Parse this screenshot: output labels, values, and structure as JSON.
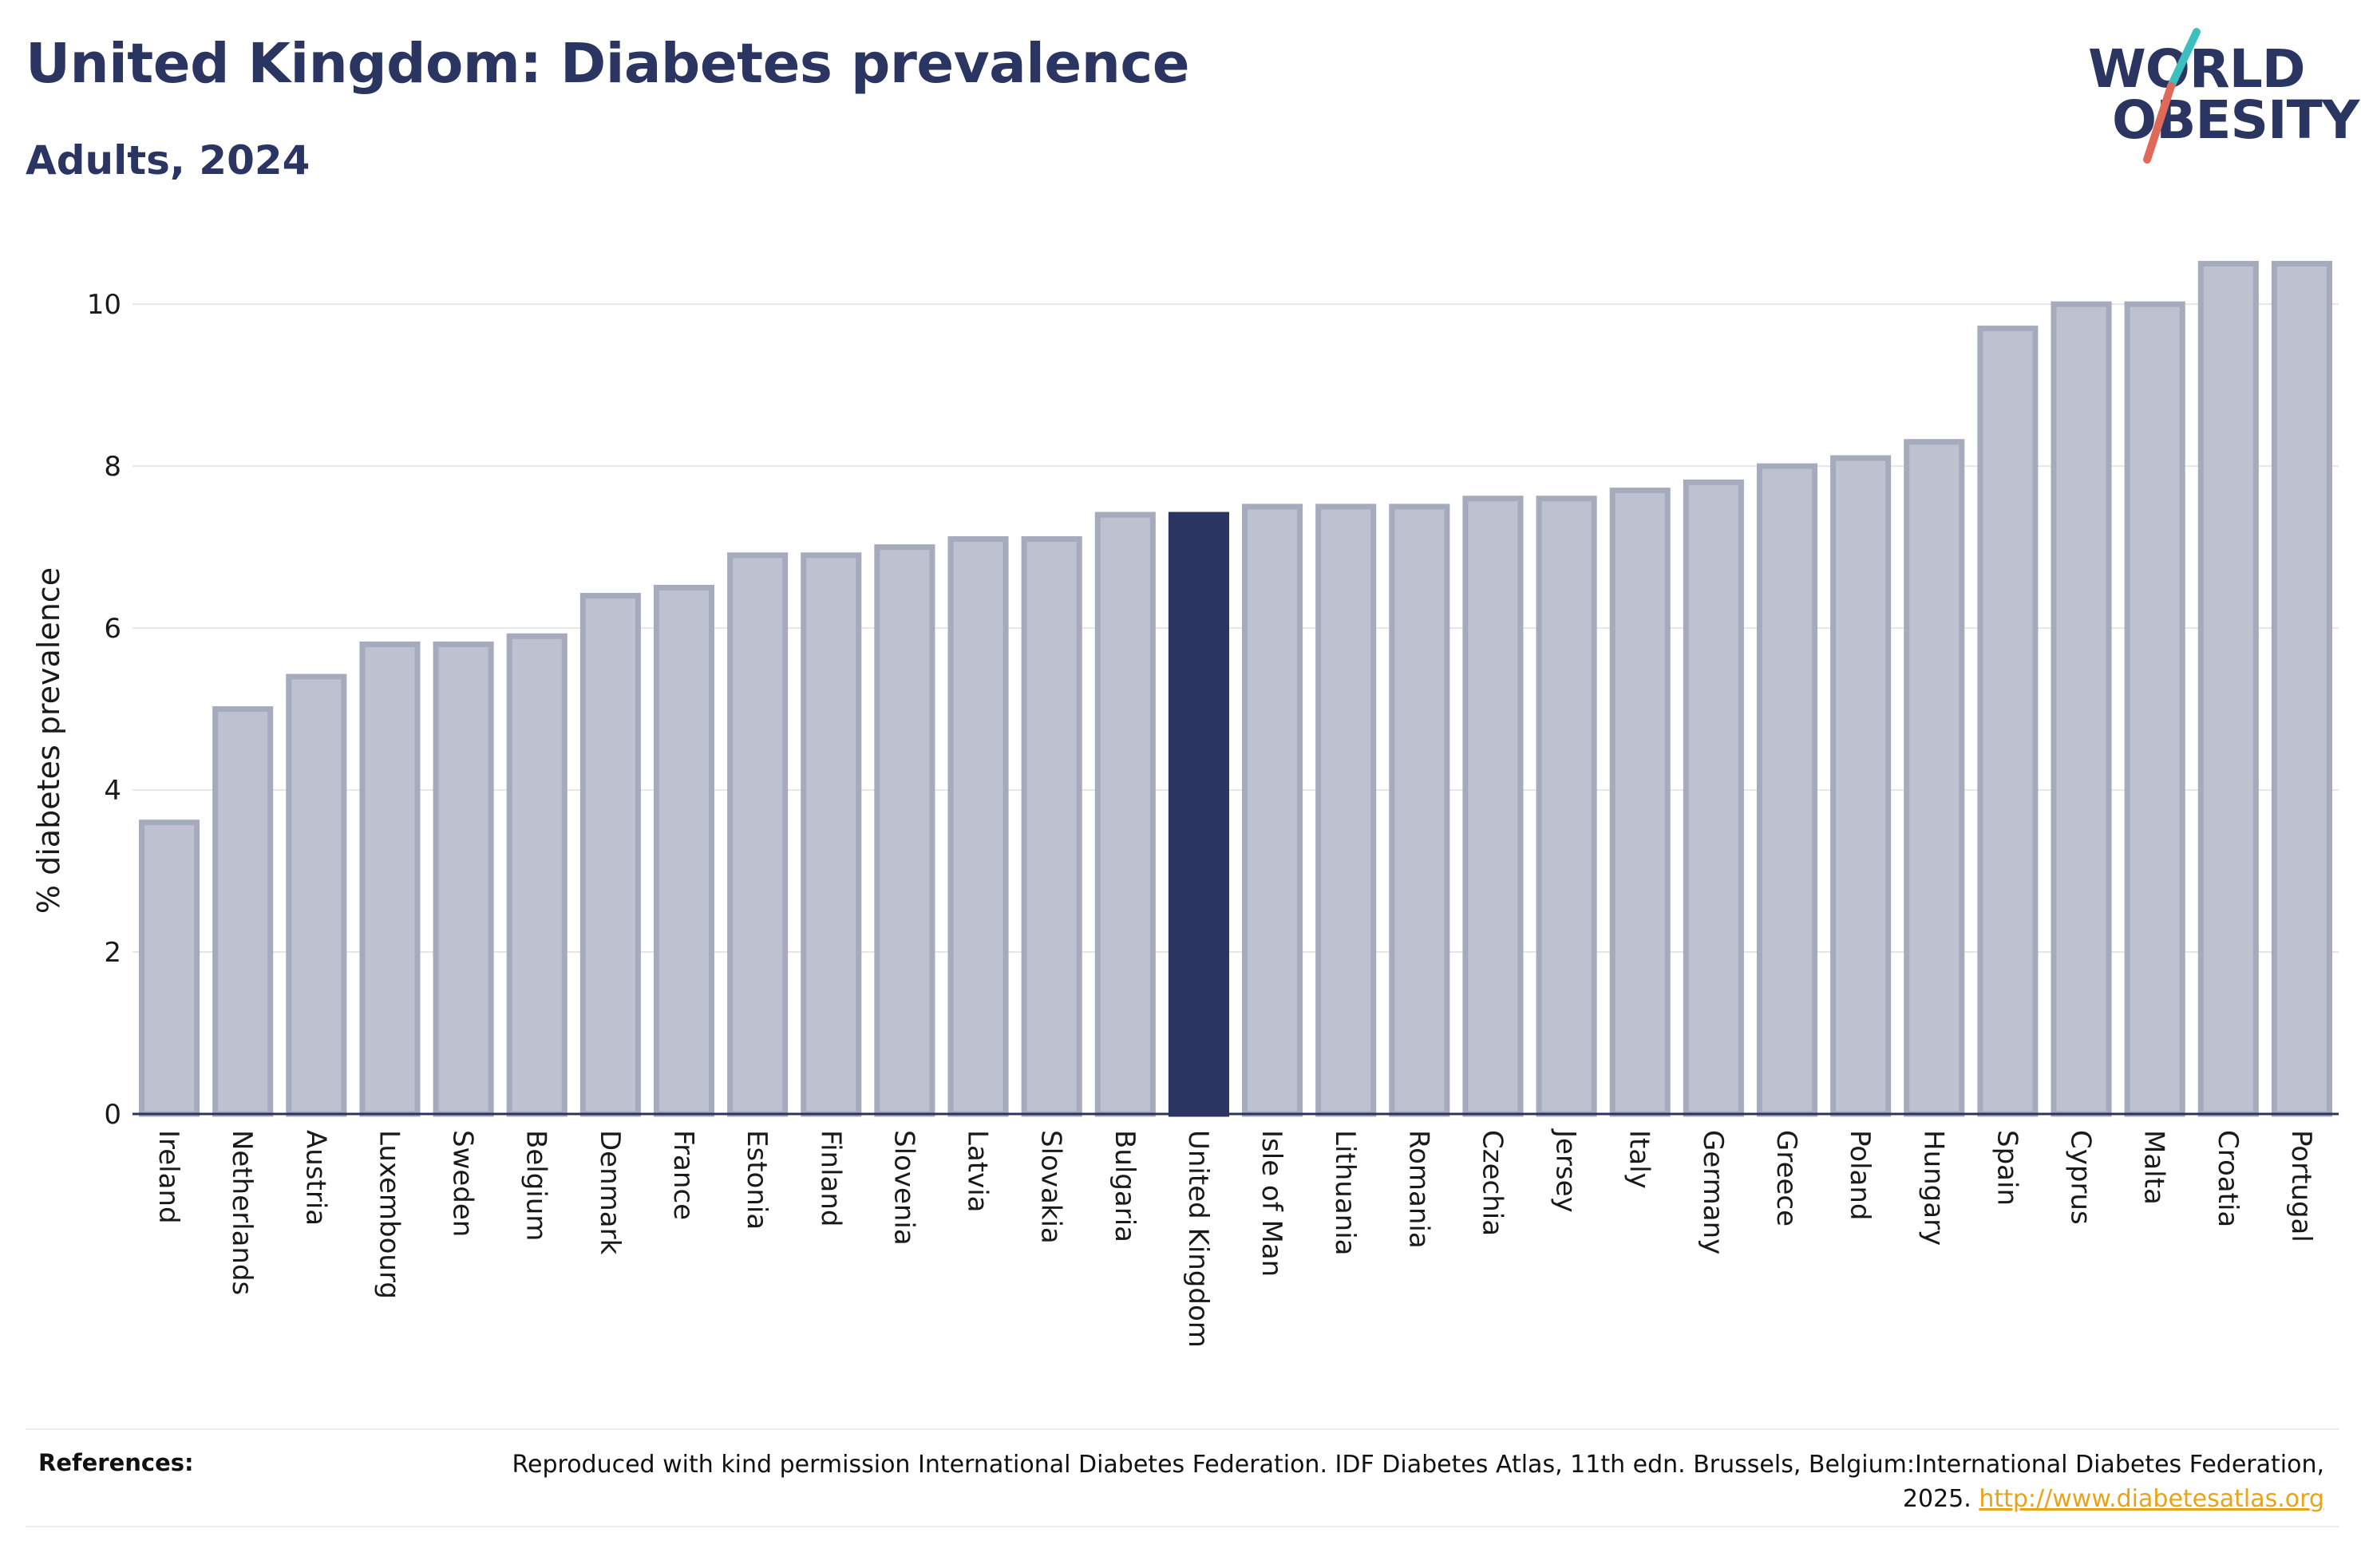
{
  "header": {
    "title": "United Kingdom: Diabetes prevalence",
    "subtitle": "Adults, 2024"
  },
  "logo": {
    "line1": "WORLD",
    "line2": "OBESITY",
    "colors": {
      "text": "#2b3561",
      "slash_top": "#3bbfbf",
      "slash_bottom": "#e06a5a"
    }
  },
  "chart_data": {
    "type": "bar",
    "title": "United Kingdom: Diabetes prevalence",
    "subtitle": "Adults, 2024",
    "xlabel": "",
    "ylabel": "% diabetes prevalence",
    "ylim": [
      0,
      10.8
    ],
    "yticks": [
      0,
      2,
      4,
      6,
      8,
      10
    ],
    "grid": true,
    "highlight": "United Kingdom",
    "colors": {
      "bar_fill": "#bec1cf",
      "bar_stroke": "#a5aabd",
      "highlight": "#2b3561"
    },
    "categories": [
      "Ireland",
      "Netherlands",
      "Austria",
      "Luxembourg",
      "Sweden",
      "Belgium",
      "Denmark",
      "France",
      "Estonia",
      "Finland",
      "Slovenia",
      "Latvia",
      "Slovakia",
      "Bulgaria",
      "United Kingdom",
      "Isle of Man",
      "Lithuania",
      "Romania",
      "Czechia",
      "Jersey",
      "Italy",
      "Germany",
      "Greece",
      "Poland",
      "Hungary",
      "Spain",
      "Cyprus",
      "Malta",
      "Croatia",
      "Portugal"
    ],
    "values": [
      3.6,
      5.0,
      5.4,
      5.8,
      5.8,
      5.9,
      6.4,
      6.5,
      6.9,
      6.9,
      7.0,
      7.1,
      7.1,
      7.4,
      7.4,
      7.5,
      7.5,
      7.5,
      7.6,
      7.6,
      7.7,
      7.8,
      8.0,
      8.1,
      8.3,
      9.7,
      10.0,
      10.0,
      10.5,
      10.5
    ]
  },
  "references": {
    "label": "References:",
    "text": "Reproduced with kind permission International Diabetes Federation. IDF Diabetes Atlas, 11th edn. Brussels, Belgium:International Diabetes Federation, 2025. ",
    "link_text": "http://www.diabetesatlas.org"
  }
}
